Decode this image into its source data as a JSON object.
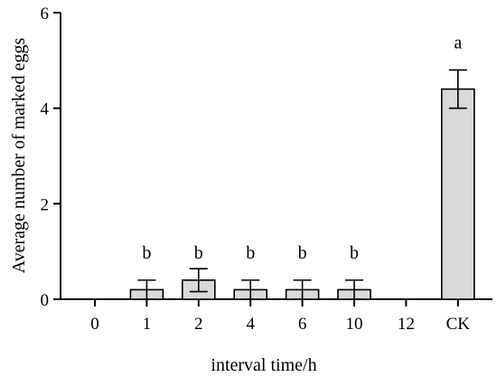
{
  "chart_data": {
    "type": "bar",
    "title": "",
    "xlabel": "interval time/h",
    "ylabel": "Average number of marked eggs",
    "categories": [
      "0",
      "1",
      "2",
      "4",
      "6",
      "10",
      "12",
      "CK"
    ],
    "values": [
      0,
      0.2,
      0.4,
      0.2,
      0.2,
      0.2,
      0,
      4.4
    ],
    "errors": [
      0,
      0.2,
      0.24,
      0.2,
      0.2,
      0.2,
      0,
      0.4
    ],
    "significance_letters": [
      "",
      "b",
      "b",
      "b",
      "b",
      "b",
      "",
      "a"
    ],
    "ylim": [
      0,
      6
    ],
    "yticks": [
      0,
      2,
      4,
      6
    ],
    "grid": false,
    "legend": "none",
    "bar_fill": "#d9d9d9",
    "bar_stroke": "#000000"
  }
}
